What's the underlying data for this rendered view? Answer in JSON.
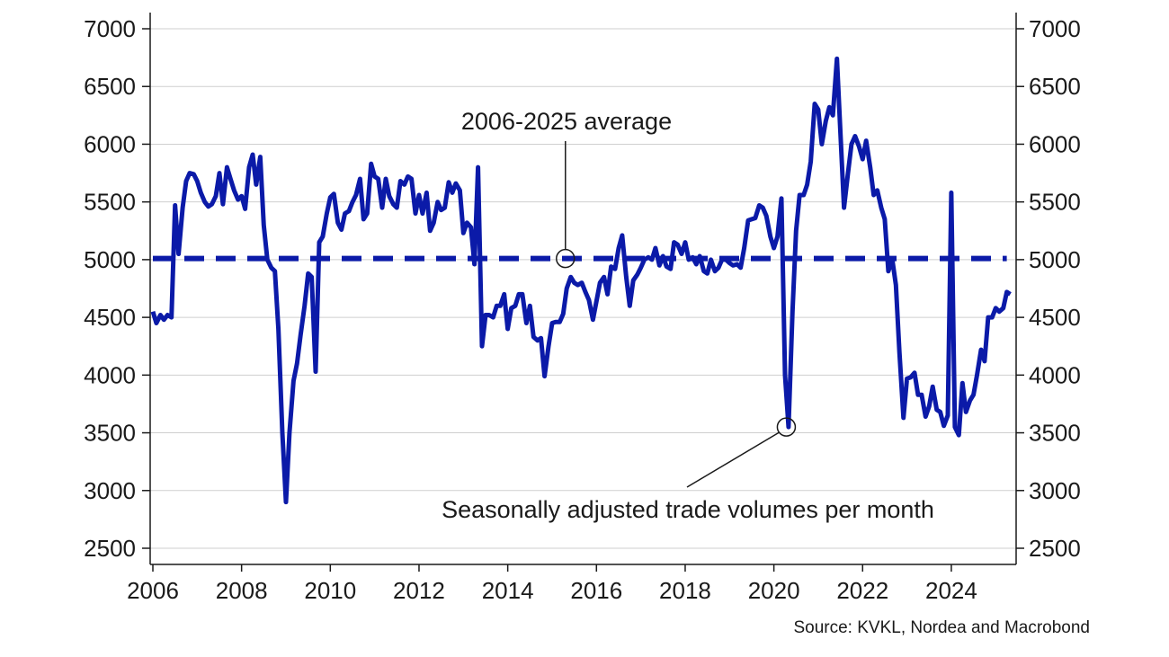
{
  "source": "Source: KVKL, Nordea and Macrobond",
  "colors": {
    "series": "#0b1aa8",
    "grid": "#cfcfcf",
    "axis": "#1a1a1a",
    "text": "#1a1a1a"
  },
  "chart_data": {
    "type": "line",
    "title": "",
    "xlabel": "",
    "ylabel": "",
    "xlim": [
      2006,
      2025.4
    ],
    "ylim": [
      2500,
      7000
    ],
    "x_ticks": [
      "2006",
      "2008",
      "2010",
      "2012",
      "2014",
      "2016",
      "2018",
      "2020",
      "2022",
      "2024"
    ],
    "y_ticks": [
      "2500",
      "3000",
      "3500",
      "4000",
      "4500",
      "5000",
      "5500",
      "6000",
      "6500",
      "7000"
    ],
    "y_axes": [
      "left",
      "right"
    ],
    "grid": "horizontal",
    "legend": "none",
    "series": [
      {
        "style": "solid",
        "points": [
          [
            2006.0,
            4550
          ],
          [
            2006.08,
            4450
          ],
          [
            2006.17,
            4520
          ],
          [
            2006.25,
            4480
          ],
          [
            2006.33,
            4520
          ],
          [
            2006.42,
            4500
          ],
          [
            2006.5,
            5470
          ],
          [
            2006.58,
            5050
          ],
          [
            2006.67,
            5450
          ],
          [
            2006.75,
            5680
          ],
          [
            2006.83,
            5750
          ],
          [
            2006.92,
            5740
          ],
          [
            2007.0,
            5680
          ],
          [
            2007.08,
            5580
          ],
          [
            2007.17,
            5500
          ],
          [
            2007.25,
            5460
          ],
          [
            2007.33,
            5480
          ],
          [
            2007.42,
            5550
          ],
          [
            2007.5,
            5750
          ],
          [
            2007.58,
            5480
          ],
          [
            2007.67,
            5800
          ],
          [
            2007.75,
            5700
          ],
          [
            2007.83,
            5600
          ],
          [
            2007.92,
            5520
          ],
          [
            2008.0,
            5550
          ],
          [
            2008.08,
            5440
          ],
          [
            2008.17,
            5800
          ],
          [
            2008.25,
            5910
          ],
          [
            2008.33,
            5650
          ],
          [
            2008.42,
            5890
          ],
          [
            2008.5,
            5300
          ],
          [
            2008.58,
            5000
          ],
          [
            2008.67,
            4930
          ],
          [
            2008.75,
            4900
          ],
          [
            2008.83,
            4400
          ],
          [
            2008.92,
            3500
          ],
          [
            2009.0,
            2900
          ],
          [
            2009.08,
            3500
          ],
          [
            2009.17,
            3950
          ],
          [
            2009.25,
            4100
          ],
          [
            2009.33,
            4350
          ],
          [
            2009.42,
            4600
          ],
          [
            2009.5,
            4880
          ],
          [
            2009.58,
            4850
          ],
          [
            2009.67,
            4030
          ],
          [
            2009.75,
            5150
          ],
          [
            2009.83,
            5200
          ],
          [
            2009.92,
            5400
          ],
          [
            2010.0,
            5540
          ],
          [
            2010.08,
            5570
          ],
          [
            2010.17,
            5320
          ],
          [
            2010.25,
            5260
          ],
          [
            2010.33,
            5400
          ],
          [
            2010.42,
            5420
          ],
          [
            2010.5,
            5500
          ],
          [
            2010.58,
            5560
          ],
          [
            2010.67,
            5700
          ],
          [
            2010.75,
            5350
          ],
          [
            2010.83,
            5400
          ],
          [
            2010.92,
            5830
          ],
          [
            2011.0,
            5720
          ],
          [
            2011.08,
            5700
          ],
          [
            2011.17,
            5450
          ],
          [
            2011.25,
            5700
          ],
          [
            2011.33,
            5550
          ],
          [
            2011.42,
            5480
          ],
          [
            2011.5,
            5450
          ],
          [
            2011.58,
            5680
          ],
          [
            2011.67,
            5650
          ],
          [
            2011.75,
            5720
          ],
          [
            2011.83,
            5700
          ],
          [
            2011.92,
            5400
          ],
          [
            2012.0,
            5560
          ],
          [
            2012.08,
            5400
          ],
          [
            2012.17,
            5580
          ],
          [
            2012.25,
            5250
          ],
          [
            2012.33,
            5320
          ],
          [
            2012.42,
            5500
          ],
          [
            2012.5,
            5430
          ],
          [
            2012.58,
            5450
          ],
          [
            2012.67,
            5670
          ],
          [
            2012.75,
            5580
          ],
          [
            2012.83,
            5660
          ],
          [
            2012.92,
            5600
          ],
          [
            2013.0,
            5230
          ],
          [
            2013.08,
            5320
          ],
          [
            2013.17,
            5280
          ],
          [
            2013.25,
            4960
          ],
          [
            2013.33,
            5800
          ],
          [
            2013.42,
            4250
          ],
          [
            2013.5,
            4520
          ],
          [
            2013.58,
            4520
          ],
          [
            2013.67,
            4500
          ],
          [
            2013.75,
            4600
          ],
          [
            2013.83,
            4600
          ],
          [
            2013.92,
            4700
          ],
          [
            2014.0,
            4400
          ],
          [
            2014.08,
            4580
          ],
          [
            2014.17,
            4600
          ],
          [
            2014.25,
            4700
          ],
          [
            2014.33,
            4700
          ],
          [
            2014.42,
            4450
          ],
          [
            2014.5,
            4600
          ],
          [
            2014.58,
            4330
          ],
          [
            2014.67,
            4300
          ],
          [
            2014.75,
            4320
          ],
          [
            2014.83,
            3990
          ],
          [
            2014.92,
            4250
          ],
          [
            2015.0,
            4450
          ],
          [
            2015.08,
            4460
          ],
          [
            2015.17,
            4460
          ],
          [
            2015.25,
            4530
          ],
          [
            2015.33,
            4750
          ],
          [
            2015.42,
            4850
          ],
          [
            2015.5,
            4800
          ],
          [
            2015.58,
            4780
          ],
          [
            2015.67,
            4800
          ],
          [
            2015.75,
            4720
          ],
          [
            2015.83,
            4650
          ],
          [
            2015.92,
            4480
          ],
          [
            2016.0,
            4640
          ],
          [
            2016.08,
            4800
          ],
          [
            2016.17,
            4850
          ],
          [
            2016.25,
            4700
          ],
          [
            2016.33,
            4940
          ],
          [
            2016.42,
            4920
          ],
          [
            2016.5,
            5100
          ],
          [
            2016.58,
            5210
          ],
          [
            2016.67,
            4850
          ],
          [
            2016.75,
            4600
          ],
          [
            2016.83,
            4820
          ],
          [
            2016.92,
            4870
          ],
          [
            2017.0,
            4930
          ],
          [
            2017.08,
            5000
          ],
          [
            2017.17,
            5020
          ],
          [
            2017.25,
            5000
          ],
          [
            2017.33,
            5100
          ],
          [
            2017.42,
            4950
          ],
          [
            2017.5,
            5030
          ],
          [
            2017.58,
            4940
          ],
          [
            2017.67,
            4920
          ],
          [
            2017.75,
            5150
          ],
          [
            2017.83,
            5130
          ],
          [
            2017.92,
            5050
          ],
          [
            2018.0,
            5150
          ],
          [
            2018.08,
            5000
          ],
          [
            2018.17,
            5020
          ],
          [
            2018.25,
            4960
          ],
          [
            2018.33,
            5030
          ],
          [
            2018.42,
            4900
          ],
          [
            2018.5,
            4880
          ],
          [
            2018.58,
            5000
          ],
          [
            2018.67,
            4900
          ],
          [
            2018.75,
            4930
          ],
          [
            2018.83,
            5000
          ],
          [
            2018.92,
            5000
          ],
          [
            2019.0,
            4970
          ],
          [
            2019.08,
            4950
          ],
          [
            2019.17,
            4960
          ],
          [
            2019.25,
            4930
          ],
          [
            2019.33,
            5100
          ],
          [
            2019.42,
            5340
          ],
          [
            2019.5,
            5350
          ],
          [
            2019.58,
            5360
          ],
          [
            2019.67,
            5470
          ],
          [
            2019.75,
            5450
          ],
          [
            2019.83,
            5380
          ],
          [
            2019.92,
            5200
          ],
          [
            2020.0,
            5100
          ],
          [
            2020.08,
            5200
          ],
          [
            2020.17,
            5530
          ],
          [
            2020.25,
            4000
          ],
          [
            2020.33,
            3550
          ],
          [
            2020.42,
            4550
          ],
          [
            2020.5,
            5250
          ],
          [
            2020.58,
            5560
          ],
          [
            2020.67,
            5560
          ],
          [
            2020.75,
            5650
          ],
          [
            2020.83,
            5850
          ],
          [
            2020.92,
            6350
          ],
          [
            2021.0,
            6300
          ],
          [
            2021.08,
            6000
          ],
          [
            2021.17,
            6200
          ],
          [
            2021.25,
            6320
          ],
          [
            2021.33,
            6250
          ],
          [
            2021.42,
            6740
          ],
          [
            2021.5,
            6100
          ],
          [
            2021.58,
            5450
          ],
          [
            2021.67,
            5750
          ],
          [
            2021.75,
            6000
          ],
          [
            2021.83,
            6070
          ],
          [
            2021.92,
            5980
          ],
          [
            2022.0,
            5870
          ],
          [
            2022.08,
            6030
          ],
          [
            2022.17,
            5800
          ],
          [
            2022.25,
            5560
          ],
          [
            2022.33,
            5600
          ],
          [
            2022.42,
            5450
          ],
          [
            2022.5,
            5350
          ],
          [
            2022.58,
            4900
          ],
          [
            2022.67,
            5000
          ],
          [
            2022.75,
            4780
          ],
          [
            2022.83,
            4200
          ],
          [
            2022.92,
            3630
          ],
          [
            2023.0,
            3970
          ],
          [
            2023.08,
            3980
          ],
          [
            2023.17,
            4020
          ],
          [
            2023.25,
            3830
          ],
          [
            2023.33,
            3830
          ],
          [
            2023.42,
            3640
          ],
          [
            2023.5,
            3730
          ],
          [
            2023.58,
            3900
          ],
          [
            2023.67,
            3700
          ],
          [
            2023.75,
            3680
          ],
          [
            2023.83,
            3560
          ],
          [
            2023.92,
            3650
          ],
          [
            2024.0,
            5580
          ],
          [
            2024.08,
            3550
          ],
          [
            2024.17,
            3480
          ],
          [
            2024.25,
            3930
          ],
          [
            2024.33,
            3680
          ],
          [
            2024.42,
            3780
          ],
          [
            2024.5,
            3830
          ],
          [
            2024.58,
            4000
          ],
          [
            2024.67,
            4220
          ],
          [
            2024.75,
            4120
          ],
          [
            2024.83,
            4500
          ],
          [
            2024.92,
            4500
          ],
          [
            2025.0,
            4580
          ],
          [
            2025.08,
            4550
          ],
          [
            2025.17,
            4580
          ],
          [
            2025.25,
            4720
          ],
          [
            2025.33,
            4700
          ]
        ]
      },
      {
        "style": "dashed",
        "points": [
          [
            2006.0,
            5010
          ],
          [
            2025.25,
            5010
          ]
        ]
      }
    ],
    "annotations": [
      {
        "text": "2006-2025 average",
        "marker": [
          2015.3,
          5010
        ]
      },
      {
        "text": "Seasonally adjusted trade volumes per month",
        "marker": [
          2020.28,
          3550
        ]
      }
    ]
  }
}
